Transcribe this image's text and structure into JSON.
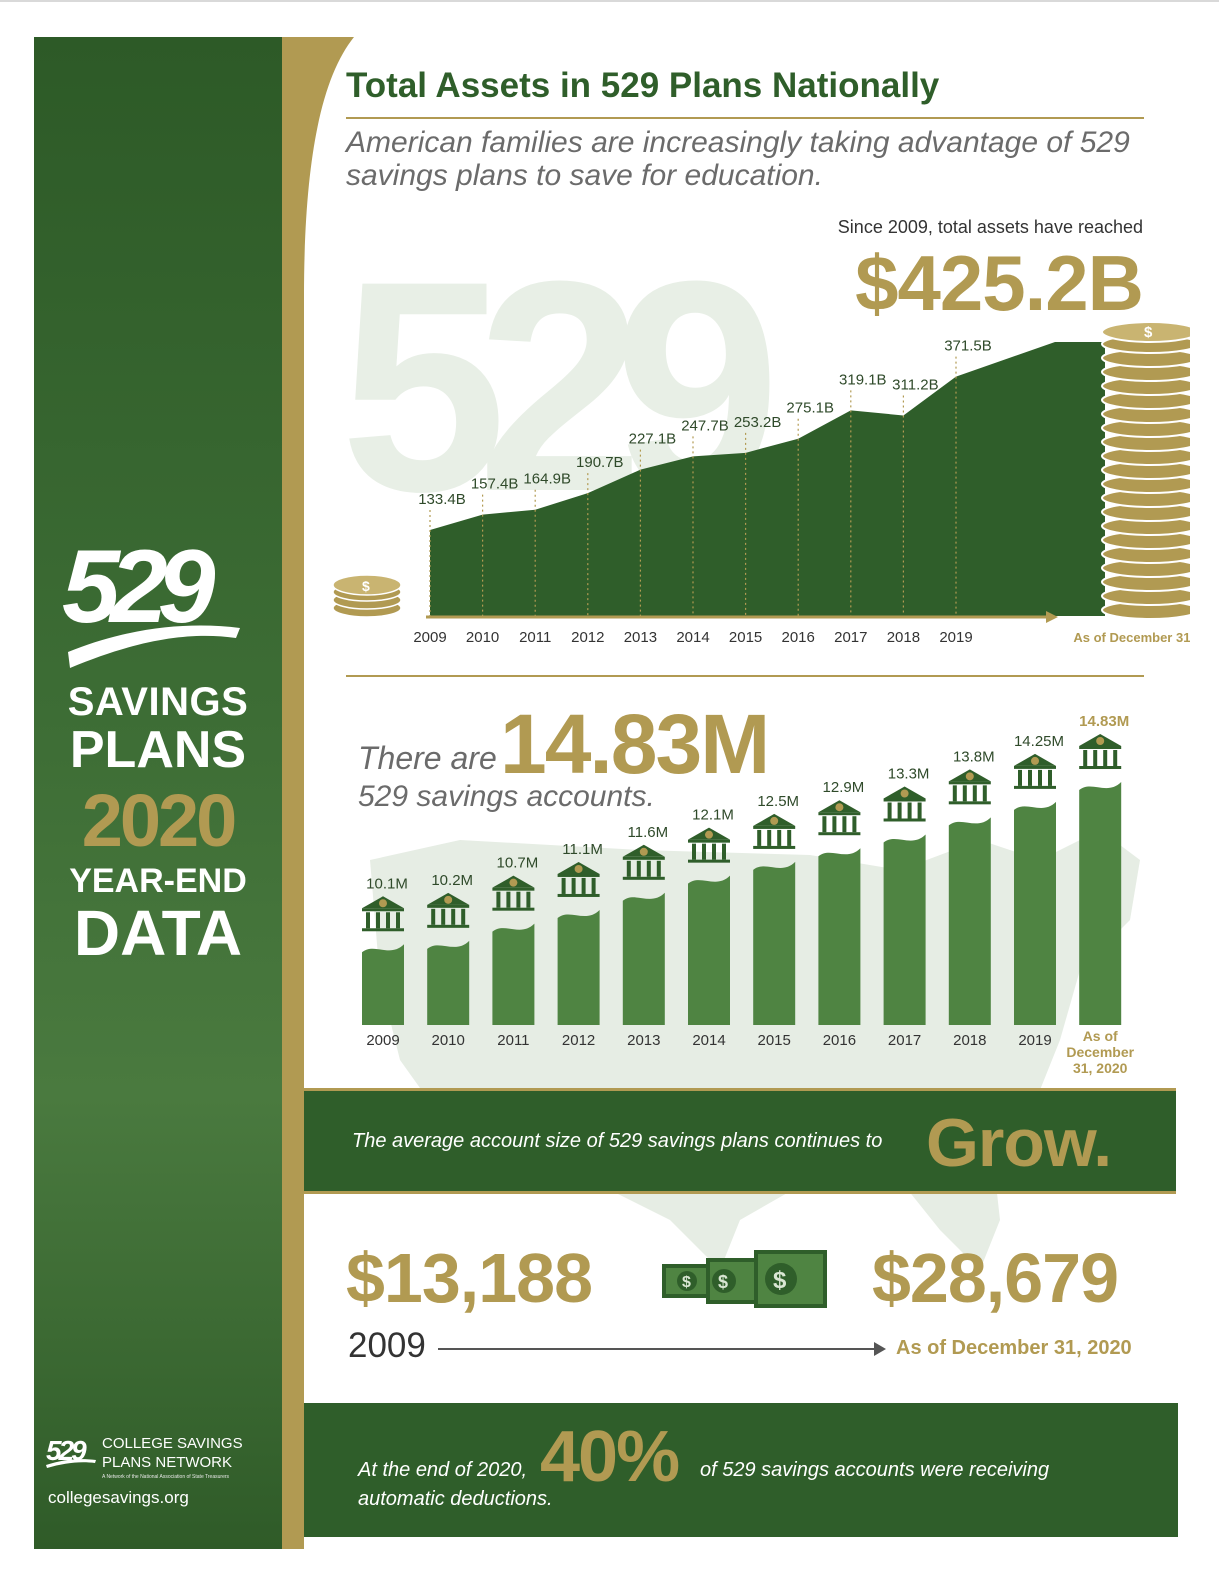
{
  "sidebar": {
    "brand_number": "529",
    "line1": "SAVINGS",
    "line2": "PLANS",
    "year": "2020",
    "line3": "YEAR-END",
    "line4": "DATA",
    "footer_logo": "529",
    "footer_name_1": "COLLEGE SAVINGS",
    "footer_name_2": "PLANS NETWORK",
    "footer_tagline": "A Network of the National Association of State Treasurers",
    "footer_url": "collegesavings.org"
  },
  "header": {
    "title": "Total Assets in 529 Plans Nationally",
    "subtitle": "American families are increasingly taking advantage of 529 savings plans to save for education."
  },
  "assets": {
    "since_text": "Since 2009, total assets have reached",
    "total": "$425.2B",
    "watermark": "529"
  },
  "accounts": {
    "prefix": "There are",
    "total": "14.83M",
    "suffix": "529 savings accounts."
  },
  "grow_band": {
    "text": "The average account size of 529 savings plans continues to",
    "word": "Grow."
  },
  "avg_size": {
    "start_value": "$13,188",
    "start_label": "2009",
    "end_value": "$28,679",
    "end_label": "As of December 31, 2020"
  },
  "automatic": {
    "prefix": "At the end of 2020,",
    "percent": "40%",
    "suffix": "of 529 savings accounts were receiving",
    "line2": "automatic deductions."
  },
  "colors": {
    "green": "#2f5e2a",
    "bar_green": "#4f8442",
    "gold": "#b19a52",
    "watermark": "#e8efe6"
  },
  "chart_data": [
    {
      "type": "area",
      "categories": [
        "2009",
        "2010",
        "2011",
        "2012",
        "2013",
        "2014",
        "2015",
        "2016",
        "2017",
        "2018",
        "2019",
        "As of December 31, 2020"
      ],
      "values": [
        133.4,
        157.4,
        164.9,
        190.7,
        227.1,
        247.7,
        253.2,
        275.1,
        319.1,
        311.2,
        371.5,
        425.2
      ],
      "labels": [
        "133.4B",
        "157.4B",
        "164.9B",
        "190.7B",
        "227.1B",
        "247.7B",
        "253.2B",
        "275.1B",
        "319.1B",
        "311.2B",
        "371.5B",
        ""
      ],
      "unit": "B",
      "ylim": [
        0,
        425.2
      ]
    },
    {
      "type": "bar",
      "categories": [
        "2009",
        "2010",
        "2011",
        "2012",
        "2013",
        "2014",
        "2015",
        "2016",
        "2017",
        "2018",
        "2019",
        "As of December 31, 2020"
      ],
      "categories_display": [
        "2009",
        "2010",
        "2011",
        "2012",
        "2013",
        "2014",
        "2015",
        "2016",
        "2017",
        "2018",
        "2019",
        "As of",
        "December",
        "31, 2020"
      ],
      "values": [
        10.1,
        10.2,
        10.7,
        11.1,
        11.6,
        12.1,
        12.5,
        12.9,
        13.3,
        13.8,
        14.25,
        14.83
      ],
      "labels": [
        "10.1M",
        "10.2M",
        "10.7M",
        "11.1M",
        "11.6M",
        "12.1M",
        "12.5M",
        "12.9M",
        "13.3M",
        "13.8M",
        "14.25M",
        "14.83M"
      ],
      "unit": "M"
    }
  ]
}
